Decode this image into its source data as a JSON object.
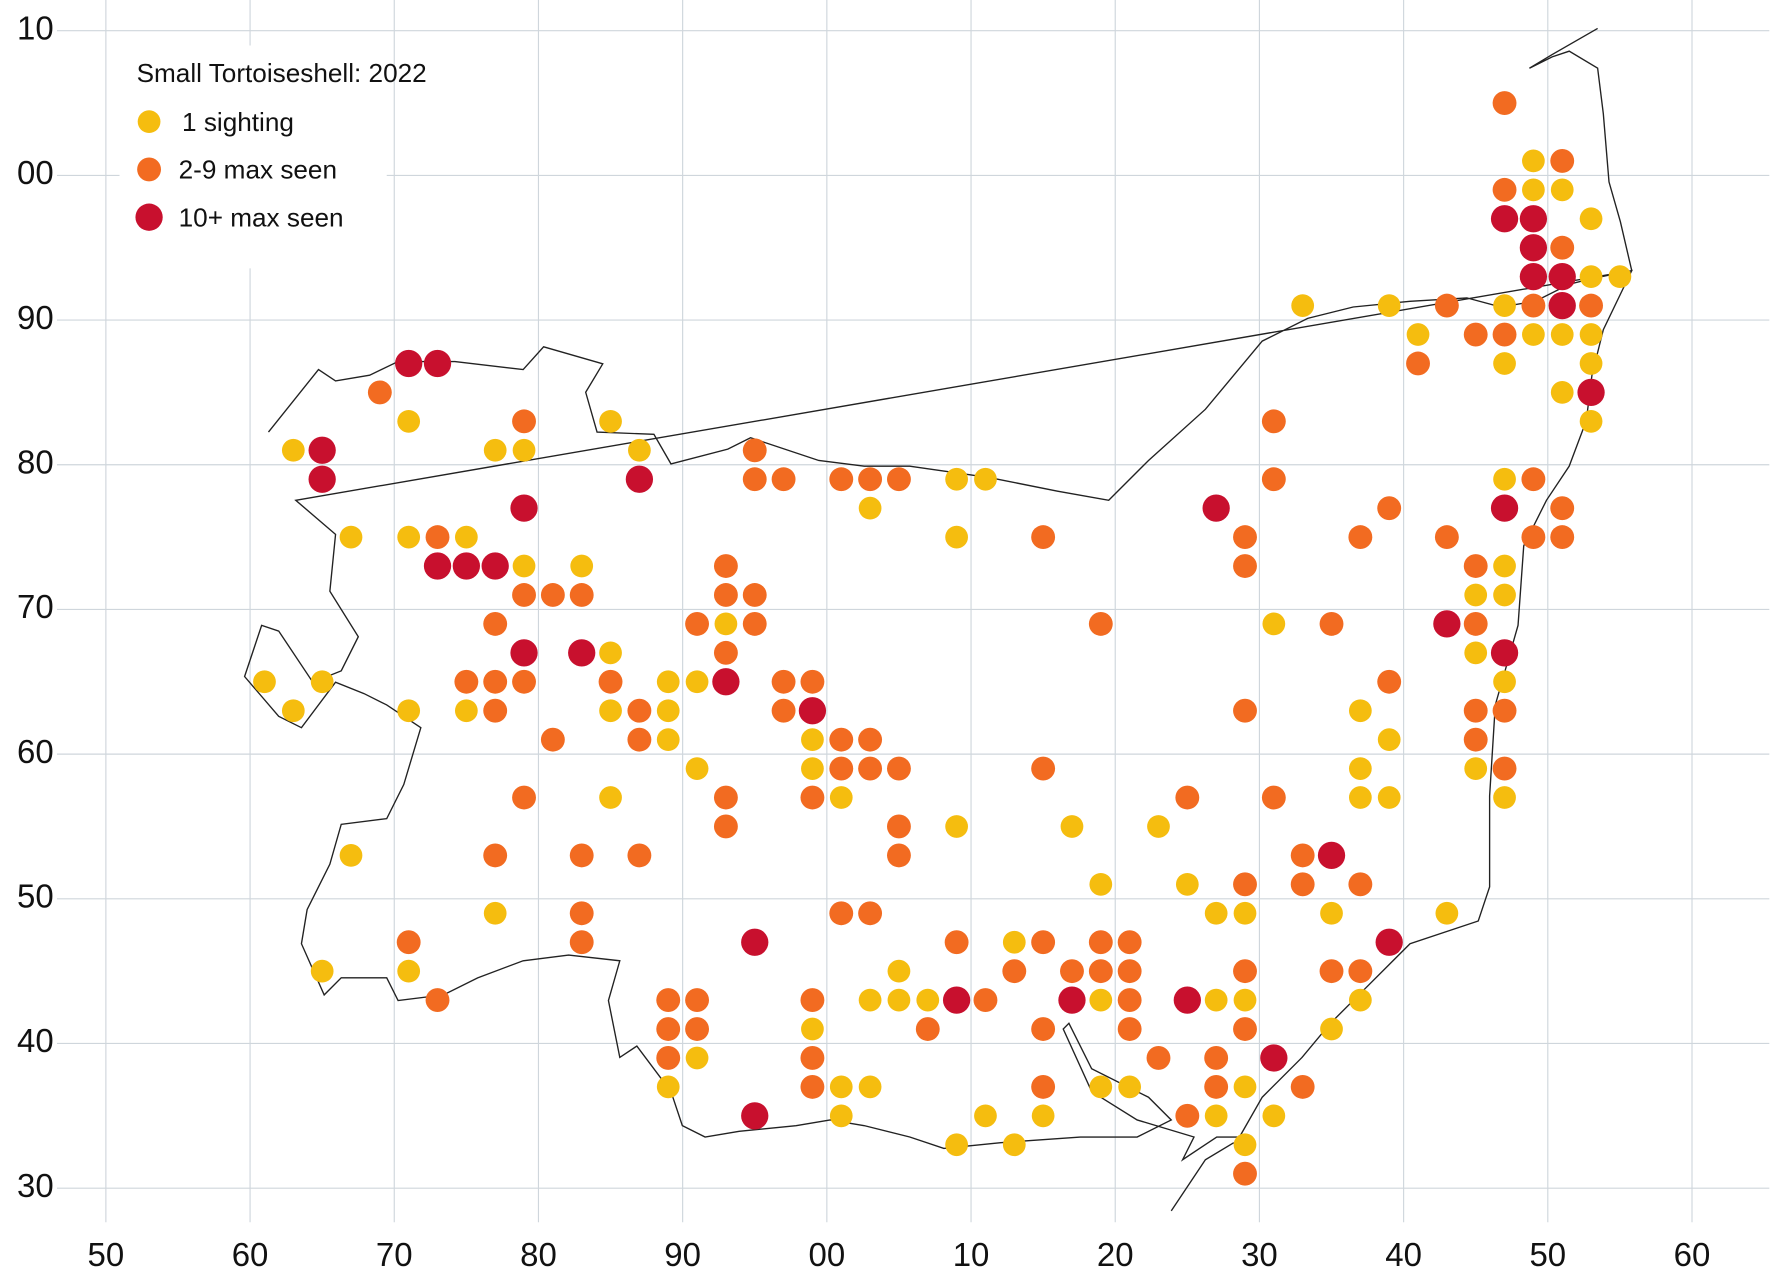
{
  "chart_data": {
    "type": "scatter",
    "title": "Small Tortoiseshell:  2022",
    "xlim": [
      -50,
      60
    ],
    "ylim": [
      30,
      110
    ],
    "xticks": [
      {
        "value": -50,
        "label": "50"
      },
      {
        "value": -40,
        "label": "60"
      },
      {
        "value": -30,
        "label": "70"
      },
      {
        "value": -20,
        "label": "80"
      },
      {
        "value": -10,
        "label": "90"
      },
      {
        "value": 0,
        "label": "00"
      },
      10,
      20,
      30,
      40,
      50,
      60
    ],
    "yticks": [
      30,
      40,
      50,
      60,
      70,
      80,
      90,
      {
        "value": 100,
        "label": "00"
      },
      {
        "value": 110,
        "label": "10"
      }
    ],
    "grid": true,
    "legend": "top-left",
    "series": [
      {
        "name": "1 sighting",
        "color": "#f5bd0f",
        "x": [
          49,
          49,
          51,
          53,
          53,
          55,
          33,
          39,
          47,
          41,
          49,
          51,
          53,
          47,
          53,
          51,
          -29,
          -15,
          53,
          -37,
          -23,
          -21,
          -13,
          9,
          11,
          47,
          3,
          -33,
          -29,
          -25,
          9,
          -21,
          -17,
          47,
          45,
          47,
          -7,
          31,
          -15,
          45,
          -39,
          -35,
          -11,
          -9,
          47,
          -37,
          -29,
          -25,
          -15,
          -11,
          37,
          -11,
          -1,
          39,
          -9,
          -1,
          37,
          45,
          -15,
          1,
          37,
          39,
          47,
          9,
          17,
          23,
          -33,
          19,
          25,
          -23,
          27,
          29,
          35,
          43,
          13,
          -35,
          -29,
          5,
          3,
          5,
          7,
          19,
          27,
          29,
          37,
          -1,
          35,
          -9,
          -11,
          1,
          3,
          19,
          21,
          29,
          1,
          11,
          15,
          27,
          31,
          9,
          13,
          29
        ],
        "y": [
          101,
          99,
          99,
          97,
          93,
          93,
          91,
          91,
          91,
          89,
          89,
          89,
          89,
          87,
          87,
          85,
          83,
          83,
          83,
          81,
          81,
          81,
          81,
          79,
          79,
          79,
          77,
          75,
          75,
          75,
          75,
          73,
          73,
          73,
          71,
          71,
          69,
          69,
          67,
          67,
          65,
          65,
          65,
          65,
          65,
          63,
          63,
          63,
          63,
          63,
          63,
          61,
          61,
          61,
          59,
          59,
          59,
          59,
          57,
          57,
          57,
          57,
          57,
          55,
          55,
          55,
          53,
          51,
          51,
          49,
          49,
          49,
          49,
          49,
          47,
          45,
          45,
          45,
          43,
          43,
          43,
          43,
          43,
          43,
          43,
          41,
          41,
          39,
          37,
          37,
          37,
          37,
          37,
          37,
          35,
          35,
          35,
          35,
          35,
          33,
          33,
          33
        ]
      },
      {
        "name": "2-9 max seen",
        "color": "#f26b21",
        "x": [
          47,
          51,
          47,
          51,
          43,
          49,
          53,
          45,
          47,
          41,
          -31,
          -21,
          31,
          -5,
          -5,
          -3,
          1,
          3,
          5,
          31,
          49,
          39,
          51,
          -27,
          15,
          29,
          37,
          43,
          49,
          51,
          -7,
          29,
          45,
          -21,
          -19,
          -17,
          -7,
          -5,
          -23,
          -9,
          -5,
          19,
          35,
          45,
          -7,
          -25,
          -23,
          -21,
          -15,
          -3,
          -1,
          39,
          -23,
          -13,
          -3,
          29,
          45,
          47,
          -19,
          -13,
          1,
          3,
          45,
          1,
          3,
          5,
          15,
          47,
          -21,
          -7,
          -1,
          25,
          31,
          -7,
          5,
          -23,
          -17,
          -13,
          5,
          33,
          29,
          33,
          37,
          -17,
          1,
          3,
          -29,
          -17,
          9,
          15,
          19,
          21,
          13,
          17,
          19,
          21,
          29,
          35,
          37,
          -27,
          -11,
          -9,
          -1,
          11,
          21,
          -11,
          -9,
          7,
          15,
          21,
          29,
          -11,
          -1,
          23,
          27,
          -1,
          15,
          27,
          33,
          25,
          29
        ],
        "y": [
          105,
          101,
          99,
          95,
          91,
          91,
          91,
          89,
          89,
          87,
          85,
          83,
          83,
          81,
          79,
          79,
          79,
          79,
          79,
          79,
          79,
          77,
          77,
          75,
          75,
          75,
          75,
          75,
          75,
          75,
          73,
          73,
          73,
          71,
          71,
          71,
          71,
          71,
          69,
          69,
          69,
          69,
          69,
          69,
          67,
          65,
          65,
          65,
          65,
          65,
          65,
          65,
          63,
          63,
          63,
          63,
          63,
          63,
          61,
          61,
          61,
          61,
          61,
          59,
          59,
          59,
          59,
          59,
          57,
          57,
          57,
          57,
          57,
          55,
          55,
          53,
          53,
          53,
          53,
          53,
          51,
          51,
          51,
          49,
          49,
          49,
          47,
          47,
          47,
          47,
          47,
          47,
          45,
          45,
          45,
          45,
          45,
          45,
          45,
          43,
          43,
          43,
          43,
          43,
          43,
          41,
          41,
          41,
          41,
          41,
          41,
          39,
          39,
          39,
          39,
          37,
          37,
          37,
          37,
          35,
          31
        ]
      },
      {
        "name": "10+ max seen",
        "color": "#c8102e",
        "x": [
          47,
          49,
          49,
          49,
          51,
          51,
          -29,
          -27,
          53,
          -35,
          -35,
          -13,
          -21,
          27,
          47,
          -27,
          -25,
          -23,
          43,
          -21,
          -17,
          47,
          -7,
          -1,
          35,
          -5,
          39,
          9,
          17,
          25,
          31,
          -5
        ],
        "y": [
          97,
          97,
          95,
          93,
          93,
          91,
          87,
          87,
          85,
          81,
          79,
          79,
          77,
          77,
          77,
          73,
          73,
          73,
          69,
          67,
          67,
          67,
          65,
          63,
          53,
          47,
          47,
          43,
          43,
          43,
          39,
          35
        ]
      }
    ]
  }
}
